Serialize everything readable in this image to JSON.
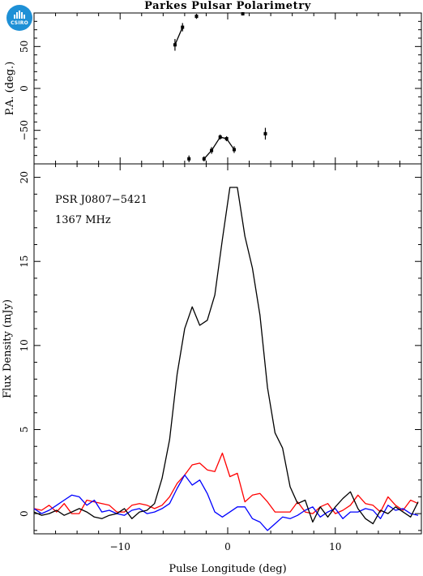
{
  "title": "Parkes Pulsar Polarimetry",
  "logo": {
    "text": "CSIRO",
    "color": "#1e90d6"
  },
  "colors": {
    "total": "#000000",
    "linear": "#ff0000",
    "circular": "#0000ff"
  },
  "chart_data": [
    {
      "type": "scatter",
      "panel": "position-angle",
      "title": "Parkes Pulsar Polarimetry",
      "ylabel": "P.A. (deg.)",
      "xlim": [
        -18,
        18
      ],
      "ylim": [
        -90,
        90
      ],
      "yticks": [
        -50,
        0,
        50
      ],
      "xticks": [
        -10,
        0,
        10
      ],
      "points": [
        {
          "x": -4.9,
          "y": 52,
          "err": 7
        },
        {
          "x": -4.2,
          "y": 73,
          "err": 5
        },
        {
          "x": -2.9,
          "y": 86,
          "err": 3
        },
        {
          "x": 1.4,
          "y": 89,
          "err": 2
        },
        {
          "x": -3.6,
          "y": -84,
          "err": 4
        },
        {
          "x": -2.2,
          "y": -84,
          "err": 3
        },
        {
          "x": -1.5,
          "y": -74,
          "err": 4
        },
        {
          "x": -0.7,
          "y": -58,
          "err": 3
        },
        {
          "x": -0.1,
          "y": -60,
          "err": 3
        },
        {
          "x": 0.6,
          "y": -73,
          "err": 4
        },
        {
          "x": 3.5,
          "y": -54,
          "err": 7
        }
      ],
      "segments": [
        [
          0,
          1
        ],
        [
          5,
          6
        ],
        [
          6,
          7
        ],
        [
          7,
          8
        ],
        [
          8,
          9
        ]
      ]
    },
    {
      "type": "line",
      "panel": "flux-density",
      "xlabel": "Pulse Longitude (deg)",
      "ylabel": "Flux Density (mJy)",
      "xlim": [
        -18,
        18
      ],
      "ylim": [
        -1.2,
        20.8
      ],
      "yticks": [
        0,
        5,
        10,
        15,
        20
      ],
      "xticks": [
        -10,
        0,
        10
      ],
      "annotations": [
        "PSR J0807−5421",
        "1367 MHz"
      ],
      "x": [
        -18,
        -17.3,
        -16.6,
        -15.9,
        -15.2,
        -14.5,
        -13.8,
        -13.1,
        -12.4,
        -11.7,
        -11,
        -10.3,
        -9.6,
        -8.9,
        -8.2,
        -7.5,
        -6.8,
        -6.1,
        -5.4,
        -4.7,
        -4,
        -3.3,
        -2.6,
        -1.9,
        -1.2,
        -0.5,
        0.2,
        0.9,
        1.6,
        2.3,
        3,
        3.7,
        4.4,
        5.1,
        5.8,
        6.5,
        7.2,
        7.9,
        8.6,
        9.3,
        10,
        10.7,
        11.4,
        12.1,
        12.8,
        13.5,
        14.2,
        14.9,
        15.6,
        16.3,
        17,
        17.7
      ],
      "series": [
        {
          "color": "#000000",
          "values": [
            0.1,
            -0.1,
            0.0,
            0.2,
            -0.1,
            0.1,
            0.3,
            0.1,
            -0.2,
            -0.3,
            -0.1,
            0.0,
            0.3,
            -0.3,
            0.1,
            0.2,
            0.6,
            2.1,
            4.4,
            8.3,
            11.0,
            12.3,
            11.2,
            11.5,
            13.0,
            16.3,
            19.4,
            19.4,
            16.5,
            14.6,
            11.8,
            7.5,
            4.8,
            3.9,
            1.6,
            0.6,
            0.8,
            -0.5,
            0.4,
            -0.2,
            0.4,
            0.9,
            1.3,
            0.3,
            -0.3,
            -0.6,
            0.2,
            0.0,
            0.4,
            0.1,
            -0.2,
            0.7
          ]
        },
        {
          "color": "#ff0000",
          "values": [
            0.3,
            0.2,
            0.5,
            0.1,
            0.6,
            0.0,
            0.0,
            0.8,
            0.7,
            0.6,
            0.5,
            0.1,
            0.1,
            0.5,
            0.6,
            0.5,
            0.3,
            0.5,
            1.0,
            1.8,
            2.3,
            2.9,
            3.0,
            2.6,
            2.5,
            3.6,
            2.2,
            2.4,
            0.7,
            1.1,
            1.2,
            0.7,
            0.1,
            0.1,
            0.1,
            0.7,
            0.1,
            0.0,
            0.4,
            0.6,
            0.0,
            0.2,
            0.5,
            1.1,
            0.6,
            0.5,
            0.1,
            1.0,
            0.5,
            0.2,
            0.8,
            0.6
          ]
        },
        {
          "color": "#0000ff",
          "values": [
            0.3,
            0.0,
            0.2,
            0.5,
            0.8,
            1.1,
            1.0,
            0.5,
            0.8,
            0.1,
            0.2,
            0.0,
            -0.1,
            0.2,
            0.3,
            0.0,
            0.1,
            0.3,
            0.6,
            1.5,
            2.3,
            1.7,
            2.0,
            1.2,
            0.1,
            -0.2,
            0.1,
            0.4,
            0.4,
            -0.3,
            -0.5,
            -1.0,
            -0.6,
            -0.2,
            -0.3,
            -0.1,
            0.2,
            0.4,
            -0.2,
            0.1,
            0.3,
            -0.3,
            0.1,
            0.1,
            0.3,
            0.2,
            -0.3,
            0.5,
            0.2,
            0.3,
            0.0,
            -0.1
          ]
        }
      ]
    }
  ]
}
